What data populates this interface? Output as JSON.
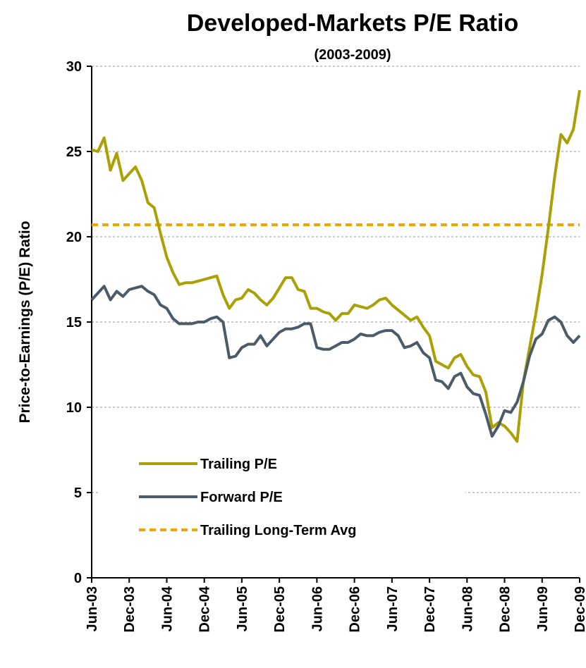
{
  "chart_data": {
    "type": "line",
    "title": "Developed-Markets P/E Ratio",
    "subtitle": "(2003-2009)",
    "y_label": "Price-to-Earnings (P/E) Ratio",
    "categories": [
      "Jun-03",
      null,
      null,
      null,
      null,
      null,
      "Dec-03",
      null,
      null,
      null,
      null,
      null,
      "Jun-04",
      null,
      null,
      null,
      null,
      null,
      "Dec-04",
      null,
      null,
      null,
      null,
      null,
      "Jun-05",
      null,
      null,
      null,
      null,
      null,
      "Dec-05",
      null,
      null,
      null,
      null,
      null,
      "Jun-06",
      null,
      null,
      null,
      null,
      null,
      "Dec-06",
      null,
      null,
      null,
      null,
      null,
      "Jun-07",
      null,
      null,
      null,
      null,
      null,
      "Dec-07",
      null,
      null,
      null,
      null,
      null,
      "Jun-08",
      null,
      null,
      null,
      null,
      null,
      "Dec-08",
      null,
      null,
      null,
      null,
      null,
      "Jun-09",
      null,
      null,
      null,
      null,
      null,
      "Dec-09"
    ],
    "series": [
      {
        "name": "Trailing P/E",
        "color": "#a9a105",
        "values": [
          25.1,
          25.0,
          25.8,
          23.9,
          24.9,
          23.3,
          23.7,
          24.1,
          23.3,
          22.0,
          21.7,
          20.2,
          18.8,
          17.9,
          17.2,
          17.3,
          17.3,
          17.4,
          17.5,
          17.6,
          17.7,
          16.6,
          15.8,
          16.3,
          16.4,
          16.9,
          16.7,
          16.3,
          16.0,
          16.4,
          17.0,
          17.6,
          17.6,
          16.9,
          16.8,
          15.8,
          15.8,
          15.6,
          15.5,
          15.1,
          15.5,
          15.5,
          16.0,
          15.9,
          15.8,
          16.0,
          16.3,
          16.4,
          16.0,
          15.7,
          15.4,
          15.1,
          15.3,
          14.7,
          14.2,
          12.7,
          12.5,
          12.3,
          12.9,
          13.1,
          12.4,
          11.9,
          11.8,
          10.9,
          8.8,
          9.1,
          8.9,
          8.5,
          8.0,
          11.5,
          13.5,
          15.5,
          17.8,
          20.5,
          23.5,
          26.0,
          25.5,
          26.3,
          28.6
        ]
      },
      {
        "name": "Forward P/E",
        "color": "#4b5b69",
        "values": [
          16.3,
          16.7,
          17.1,
          16.3,
          16.8,
          16.5,
          16.9,
          17.0,
          17.1,
          16.8,
          16.6,
          16.0,
          15.8,
          15.2,
          14.9,
          14.9,
          14.9,
          15.0,
          15.0,
          15.2,
          15.3,
          15.0,
          12.9,
          13.0,
          13.5,
          13.7,
          13.7,
          14.2,
          13.6,
          14.0,
          14.4,
          14.6,
          14.6,
          14.7,
          14.9,
          14.9,
          13.5,
          13.4,
          13.4,
          13.6,
          13.8,
          13.8,
          14.0,
          14.3,
          14.2,
          14.2,
          14.4,
          14.5,
          14.5,
          14.2,
          13.5,
          13.6,
          13.8,
          13.2,
          12.9,
          11.6,
          11.5,
          11.1,
          11.8,
          12.0,
          11.2,
          10.8,
          10.7,
          9.6,
          8.3,
          8.9,
          9.8,
          9.7,
          10.3,
          11.5,
          13.0,
          14.0,
          14.3,
          15.1,
          15.3,
          15.0,
          14.2,
          13.8,
          14.2
        ]
      }
    ],
    "hlines": [
      {
        "name": "Trailing Long-Term Avg",
        "value": 20.7,
        "color": "#f0a500",
        "style": "dashed"
      }
    ],
    "ylim": [
      0,
      30
    ],
    "yticks": [
      0,
      5,
      10,
      15,
      20,
      25,
      30
    ],
    "grid": true,
    "legend": "lower left"
  }
}
